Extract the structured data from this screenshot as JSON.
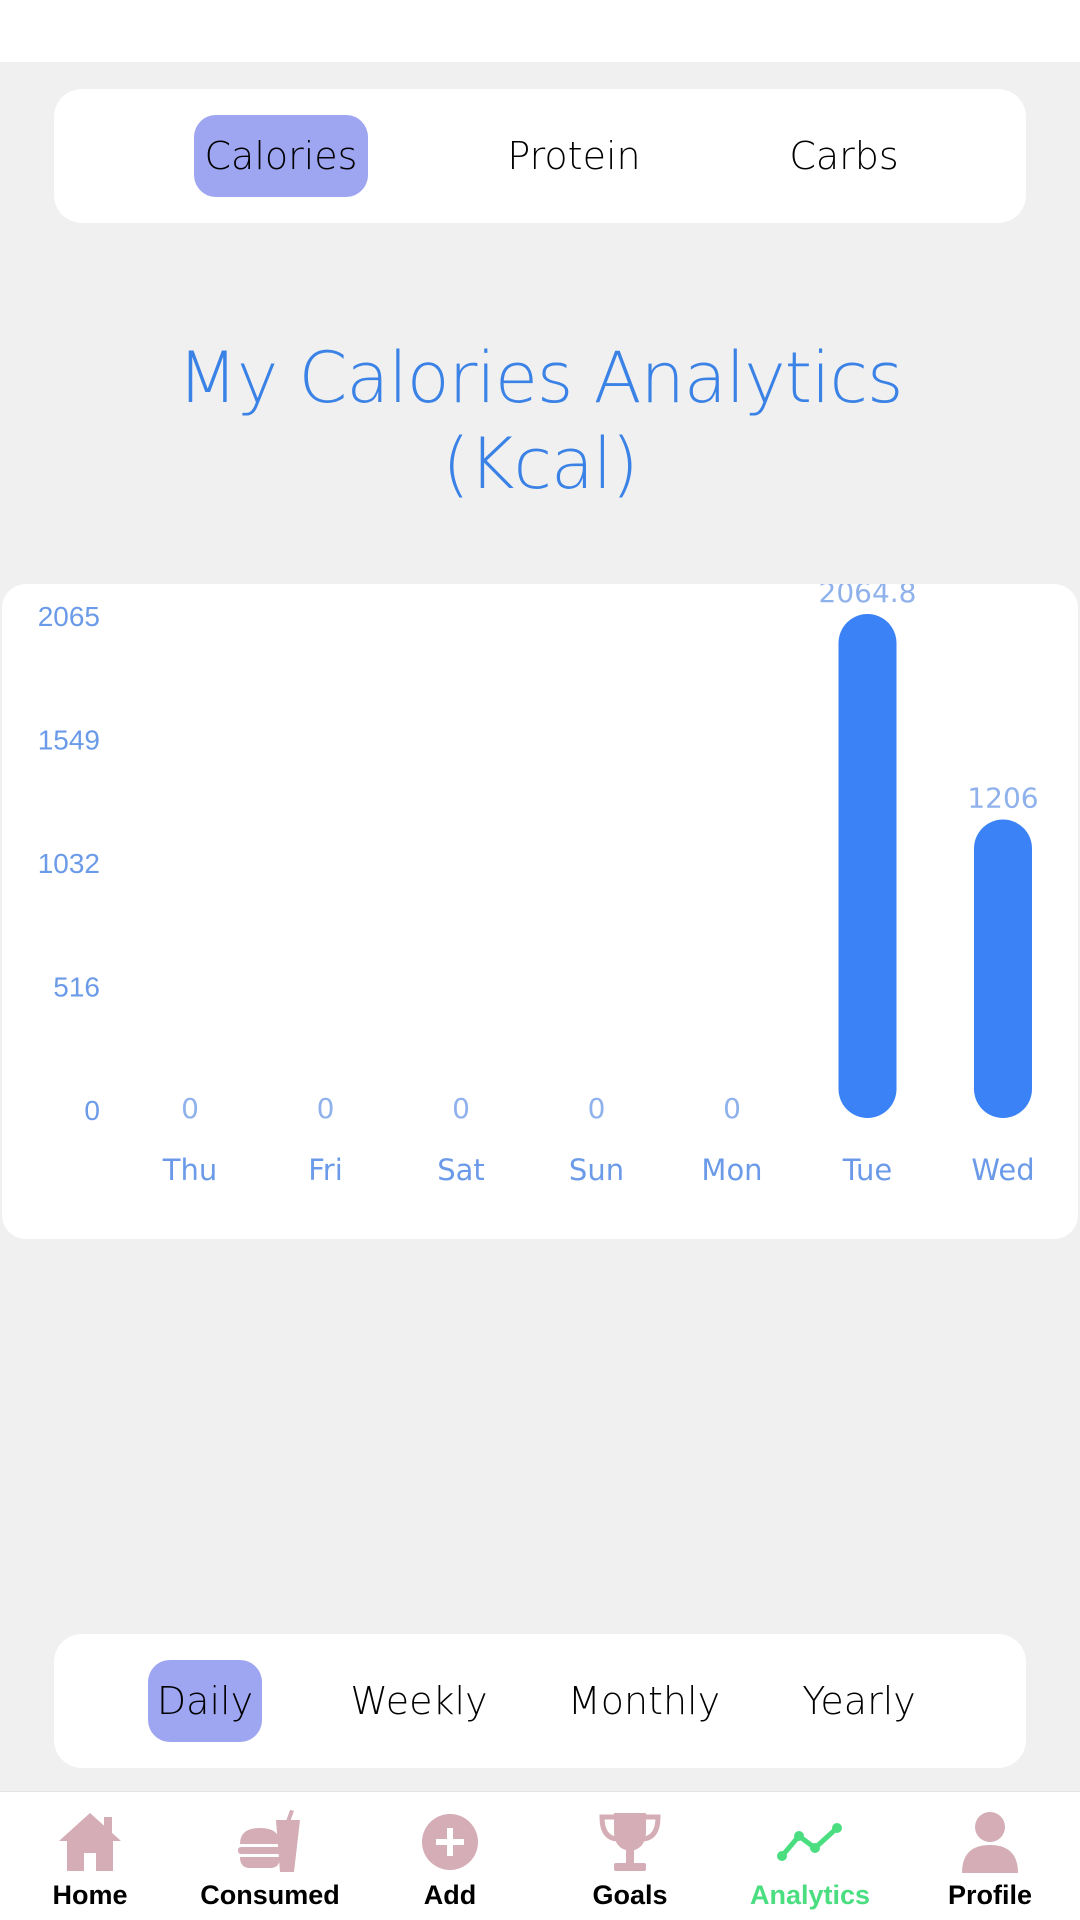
{
  "metric_tabs": [
    {
      "label": "Calories",
      "active": true
    },
    {
      "label": "Protein",
      "active": false
    },
    {
      "label": "Carbs",
      "active": false
    }
  ],
  "page_title_line1": "My Calories Analytics",
  "page_title_line2": "(Kcal)",
  "chart_data": {
    "type": "bar",
    "categories": [
      "Thu",
      "Fri",
      "Sat",
      "Sun",
      "Mon",
      "Tue",
      "Wed"
    ],
    "values": [
      0,
      0,
      0,
      0,
      0,
      2064.8,
      1206
    ],
    "data_labels": [
      "0",
      "0",
      "0",
      "0",
      "0",
      "2064.8",
      "1206"
    ],
    "y_ticks": [
      0,
      516,
      1032,
      1549,
      2065
    ],
    "ylim": [
      0,
      2065
    ],
    "title": "",
    "xlabel": "",
    "ylabel": "",
    "grid": false,
    "bar_color": "#3b82f6",
    "label_color": "#6b9be8"
  },
  "period_tabs": [
    {
      "label": "Daily",
      "active": true
    },
    {
      "label": "Weekly",
      "active": false
    },
    {
      "label": "Monthly",
      "active": false
    },
    {
      "label": "Yearly",
      "active": false
    }
  ],
  "nav": [
    {
      "label": "Home",
      "icon": "home-icon",
      "active": false
    },
    {
      "label": "Consumed",
      "icon": "fast-food-icon",
      "active": false
    },
    {
      "label": "Add",
      "icon": "add-circle-icon",
      "active": false
    },
    {
      "label": "Goals",
      "icon": "trophy-icon",
      "active": false
    },
    {
      "label": "Analytics",
      "icon": "analytics-icon",
      "active": true
    },
    {
      "label": "Profile",
      "icon": "user-icon",
      "active": false
    }
  ],
  "colors": {
    "accent": "#9ea6f2",
    "title": "#3b82e6",
    "nav_icon": "#d4adb6",
    "nav_active": "#4ade80"
  }
}
